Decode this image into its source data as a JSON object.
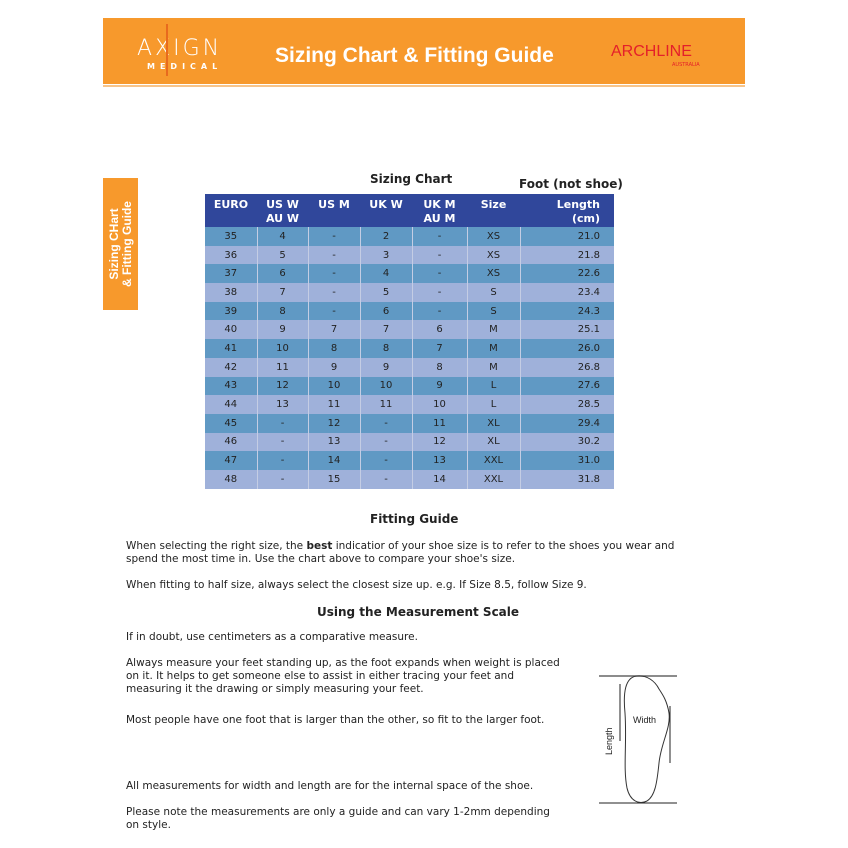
{
  "header": {
    "brand_left": "AXIGN",
    "brand_left_sub": "MEDICAL",
    "title": "Sizing Chart & Fitting Guide",
    "brand_right": "ARCHLINE",
    "brand_right_sub": "AUSTRALIA",
    "color": "#f7992c"
  },
  "side_tab": {
    "line1": "Sizing CHart",
    "line2": "& Fitting Guide"
  },
  "chart_title": "Sizing Chart",
  "foot_note": "Foot (not shoe)",
  "table": {
    "headers": [
      [
        "EURO",
        ""
      ],
      [
        "US W",
        "AU W"
      ],
      [
        "US M",
        ""
      ],
      [
        "UK W",
        ""
      ],
      [
        "UK M",
        "AU M"
      ],
      [
        "Size",
        ""
      ],
      [
        "Length",
        "(cm)"
      ]
    ],
    "rows": [
      [
        "35",
        "4",
        "-",
        "2",
        "-",
        "XS",
        "21.0"
      ],
      [
        "36",
        "5",
        "-",
        "3",
        "-",
        "XS",
        "21.8"
      ],
      [
        "37",
        "6",
        "-",
        "4",
        "-",
        "XS",
        "22.6"
      ],
      [
        "38",
        "7",
        "-",
        "5",
        "-",
        "S",
        "23.4"
      ],
      [
        "39",
        "8",
        "-",
        "6",
        "-",
        "S",
        "24.3"
      ],
      [
        "40",
        "9",
        "7",
        "7",
        "6",
        "M",
        "25.1"
      ],
      [
        "41",
        "10",
        "8",
        "8",
        "7",
        "M",
        "26.0"
      ],
      [
        "42",
        "11",
        "9",
        "9",
        "8",
        "M",
        "26.8"
      ],
      [
        "43",
        "12",
        "10",
        "10",
        "9",
        "L",
        "27.6"
      ],
      [
        "44",
        "13",
        "11",
        "11",
        "10",
        "L",
        "28.5"
      ],
      [
        "45",
        "-",
        "12",
        "-",
        "11",
        "XL",
        "29.4"
      ],
      [
        "46",
        "-",
        "13",
        "-",
        "12",
        "XL",
        "30.2"
      ],
      [
        "47",
        "-",
        "14",
        "-",
        "13",
        "XXL",
        "31.0"
      ],
      [
        "48",
        "-",
        "15",
        "-",
        "14",
        "XXL",
        "31.8"
      ]
    ]
  },
  "fitting": {
    "title": "Fitting Guide",
    "p1a": "When selecting the right size, the ",
    "p1b": "best",
    "p1c": " indicatior of your shoe size is to refer to the shoes you wear and spend the most time in. Use the chart above to compare your shoe's size.",
    "p2": "When fitting to half size, always select the closest size up. e.g. If Size 8.5, follow Size 9."
  },
  "measure": {
    "title": "Using the Measurement Scale",
    "p1": "If in doubt, use centimeters as a comparative measure.",
    "p2": "Always measure your feet standing up, as the foot expands when weight is placed on it. It helps to get someone else to assist in either tracing your feet and measuring it the drawing or simply measuring your feet.",
    "p3": "Most people have one foot that is larger than the other, so fit to the larger foot.",
    "p4": "All measurements for width and length are for the internal space of the shoe.",
    "p5": "Please note the measurements are only a guide and can vary 1-2mm depending on style.",
    "diagram_width": "Width",
    "diagram_length": "Length"
  }
}
